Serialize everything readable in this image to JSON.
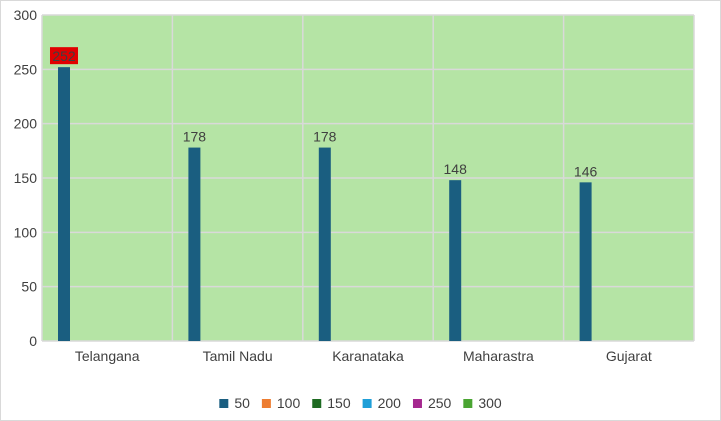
{
  "chart_data": {
    "type": "bar",
    "title": "",
    "xlabel": "",
    "ylabel": "",
    "categories": [
      "Telangana",
      "Tamil Nadu",
      "Karanataka",
      "Maharastra",
      "Gujarat"
    ],
    "series": [
      {
        "name": "50",
        "color": "#1a5e80",
        "values": [
          252,
          178,
          178,
          148,
          146
        ]
      },
      {
        "name": "100",
        "color": "#ed7d31",
        "values": [
          null,
          null,
          null,
          null,
          null
        ]
      },
      {
        "name": "150",
        "color": "#1e6b22",
        "values": [
          null,
          null,
          null,
          null,
          null
        ]
      },
      {
        "name": "200",
        "color": "#1f9fd8",
        "values": [
          null,
          null,
          null,
          null,
          null
        ]
      },
      {
        "name": "250",
        "color": "#a5288f",
        "values": [
          null,
          null,
          null,
          null,
          null
        ]
      },
      {
        "name": "300",
        "color": "#4aa532",
        "values": [
          null,
          null,
          null,
          null,
          null
        ]
      }
    ],
    "data_labels": [
      "252",
      "178",
      "178",
      "148",
      "146"
    ],
    "highlighted_label": {
      "category": "Telangana",
      "background": "#e00000"
    },
    "ylim": [
      0,
      300
    ],
    "yticks": [
      0,
      50,
      100,
      150,
      200,
      250,
      300
    ],
    "grid": true,
    "legend_position": "bottom",
    "colors": {
      "plot_background": "#b5e4a5",
      "gridline": "#d9d9d9",
      "axis_text": "#404040"
    }
  }
}
